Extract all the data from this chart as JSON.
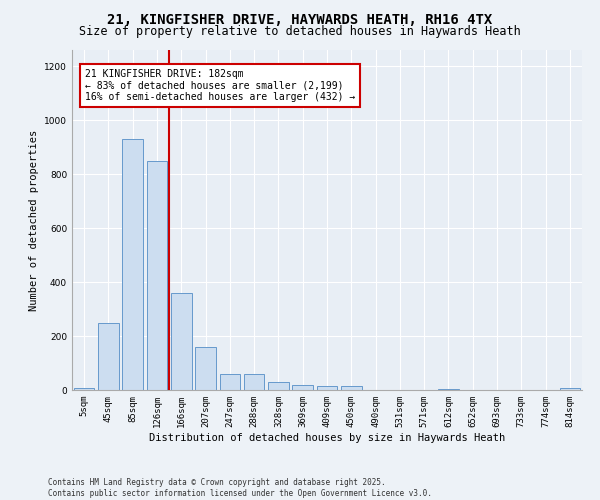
{
  "title_line1": "21, KINGFISHER DRIVE, HAYWARDS HEATH, RH16 4TX",
  "title_line2": "Size of property relative to detached houses in Haywards Heath",
  "xlabel": "Distribution of detached houses by size in Haywards Heath",
  "ylabel": "Number of detached properties",
  "bar_color": "#ccddf0",
  "bar_edge_color": "#6699cc",
  "bar_labels": [
    "5sqm",
    "45sqm",
    "85sqm",
    "126sqm",
    "166sqm",
    "207sqm",
    "247sqm",
    "288sqm",
    "328sqm",
    "369sqm",
    "409sqm",
    "450sqm",
    "490sqm",
    "531sqm",
    "571sqm",
    "612sqm",
    "652sqm",
    "693sqm",
    "733sqm",
    "774sqm",
    "814sqm"
  ],
  "bar_values": [
    8,
    248,
    930,
    848,
    358,
    158,
    60,
    60,
    30,
    18,
    13,
    13,
    0,
    0,
    0,
    5,
    0,
    0,
    0,
    0,
    8
  ],
  "vline_x": 3.5,
  "vline_color": "#cc0000",
  "ylim": [
    0,
    1260
  ],
  "yticks": [
    0,
    200,
    400,
    600,
    800,
    1000,
    1200
  ],
  "annotation_text": "21 KINGFISHER DRIVE: 182sqm\n← 83% of detached houses are smaller (2,199)\n16% of semi-detached houses are larger (432) →",
  "bg_color": "#e8eef5",
  "grid_color": "#ffffff",
  "fig_bg_color": "#edf2f7",
  "footer_text": "Contains HM Land Registry data © Crown copyright and database right 2025.\nContains public sector information licensed under the Open Government Licence v3.0.",
  "title_fontsize": 10,
  "subtitle_fontsize": 8.5,
  "axis_label_fontsize": 7.5,
  "tick_fontsize": 6.5,
  "footer_fontsize": 5.5
}
